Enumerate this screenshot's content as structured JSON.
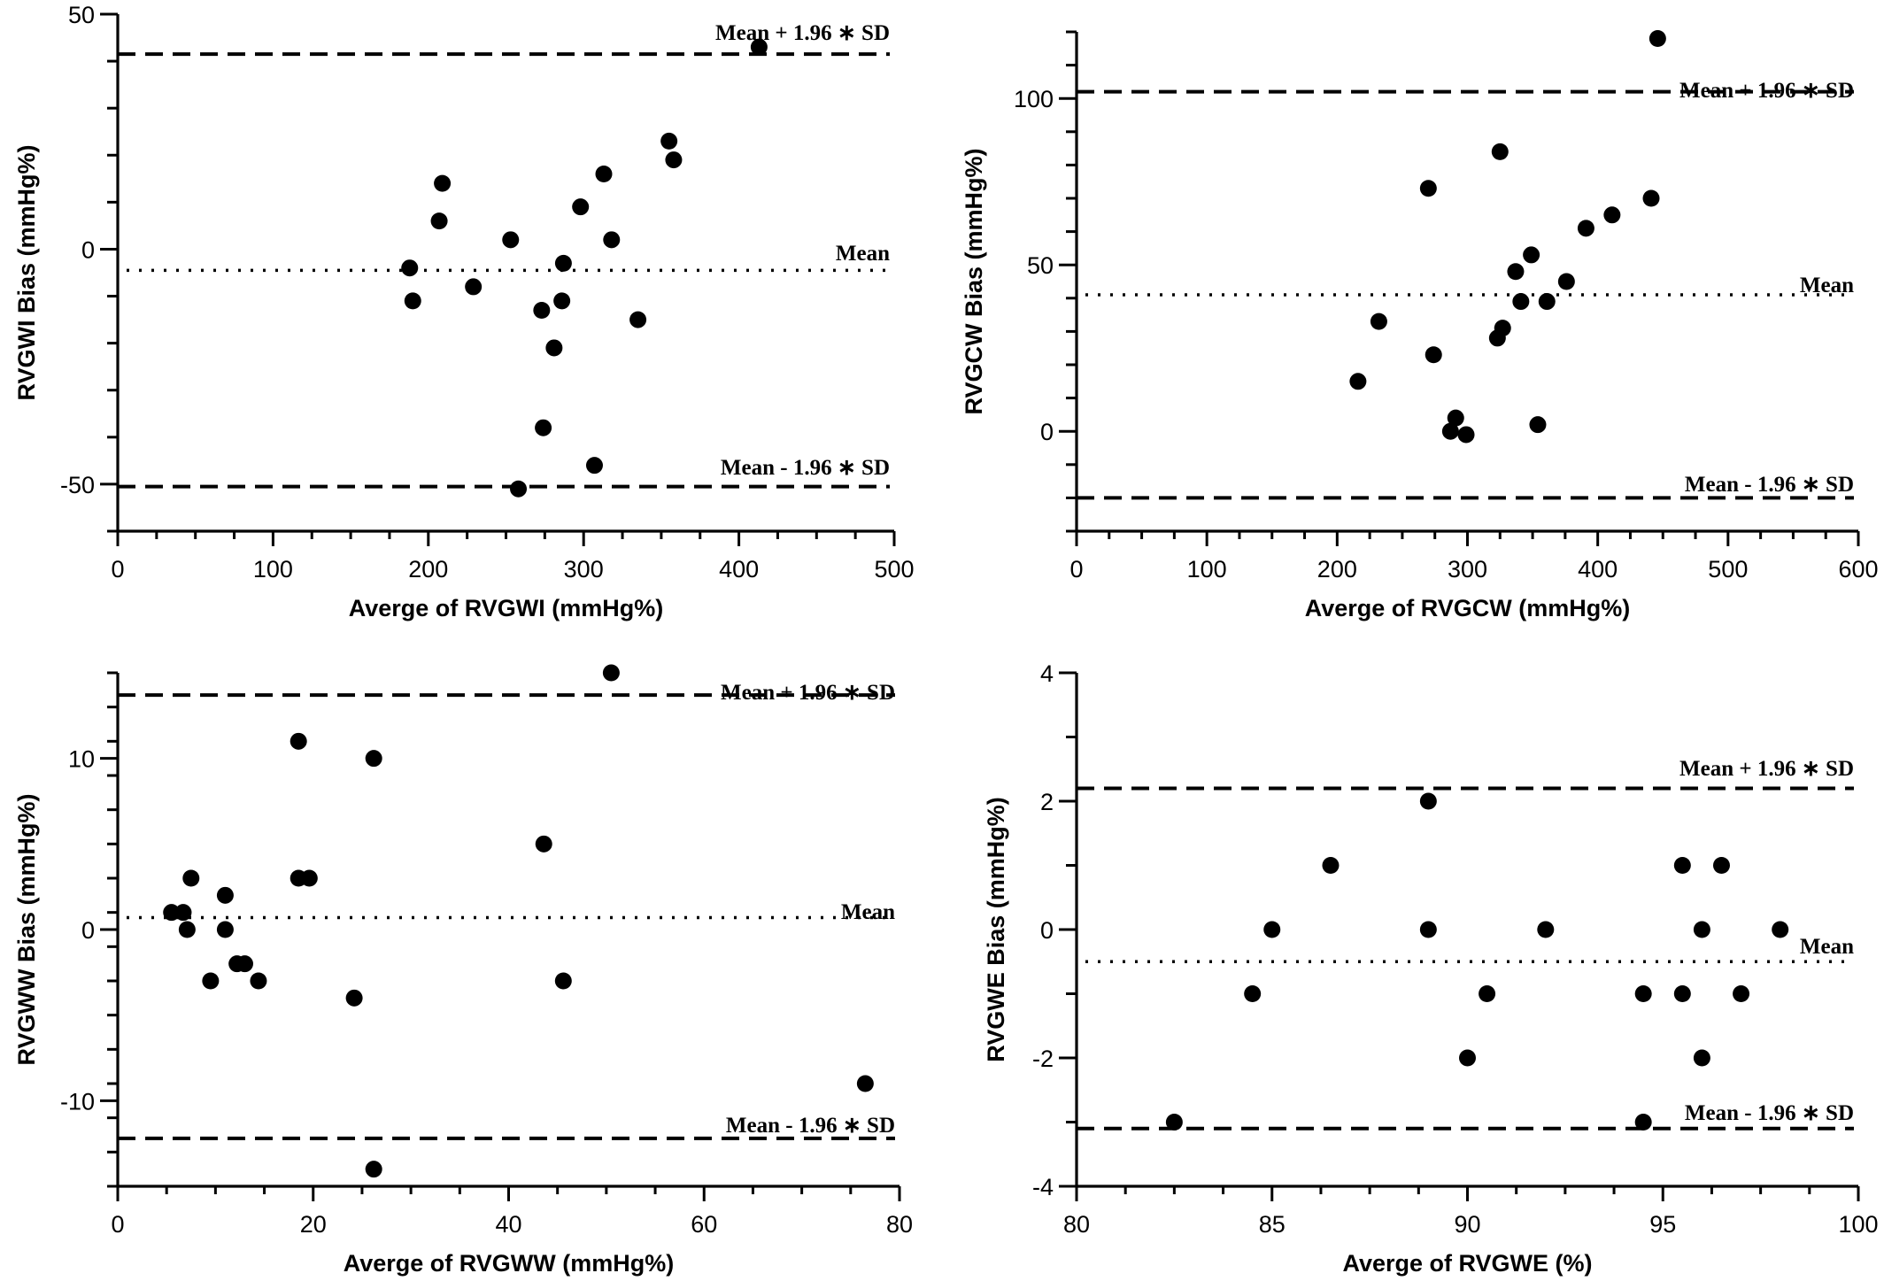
{
  "chart_data": [
    {
      "type": "scatter",
      "xlabel": "Averge of RVGWI (mmHg%)",
      "ylabel": "RVGWI Bias (mmHg%)",
      "xlim": [
        0,
        500
      ],
      "ylim": [
        -60,
        50
      ],
      "xticks": [
        0,
        100,
        200,
        300,
        400,
        500
      ],
      "yticks": [
        -50,
        0,
        50
      ],
      "upper_loa": 41.5,
      "mean": -4.5,
      "lower_loa": -50.5,
      "upper_label": "Mean + 1.96 ∗ SD",
      "mean_label": "Mean",
      "lower_label": "Mean - 1.96 ∗ SD",
      "x": [
        413,
        355,
        358,
        313,
        209,
        207,
        298,
        253,
        318,
        188,
        287,
        229,
        190,
        286,
        273,
        335,
        281,
        274,
        307,
        258
      ],
      "y": [
        43,
        23,
        19,
        16,
        14,
        6,
        9,
        2,
        2,
        -4,
        -3,
        -8,
        -11,
        -11,
        -13,
        -15,
        -21,
        -38,
        -46,
        -51
      ]
    },
    {
      "type": "scatter",
      "xlabel": "Averge of RVGCW (mmHg%)",
      "ylabel": "RVGCW Bias (mmHg%)",
      "xlim": [
        0,
        600
      ],
      "ylim": [
        -30,
        120
      ],
      "xticks": [
        0,
        100,
        200,
        300,
        400,
        500,
        600
      ],
      "yticks": [
        0,
        50,
        100
      ],
      "upper_loa": 102,
      "mean": 41,
      "lower_loa": -20,
      "upper_label": "Mean + 1.96 ∗ SD",
      "mean_label": "Mean",
      "lower_label": "Mean - 1.96 ∗ SD",
      "x": [
        446,
        325,
        270,
        441,
        411,
        391,
        349,
        337,
        376,
        341,
        361,
        232,
        327,
        323,
        274,
        216,
        291,
        287,
        354,
        299
      ],
      "y": [
        118,
        84,
        73,
        70,
        65,
        61,
        53,
        48,
        45,
        39,
        39,
        33,
        31,
        28,
        23,
        15,
        4,
        0,
        2,
        -1
      ]
    },
    {
      "type": "scatter",
      "xlabel": "Averge of RVGWW (mmHg%)",
      "ylabel": "RVGWW Bias (mmHg%)",
      "xlim": [
        0,
        80
      ],
      "ylim": [
        -15,
        15
      ],
      "xticks": [
        0,
        20,
        40,
        60,
        80
      ],
      "yticks": [
        -10,
        0,
        10
      ],
      "upper_loa": 13.7,
      "mean": 0.7,
      "lower_loa": -12.2,
      "upper_label": "Mean + 1.96 ∗ SD",
      "mean_label": "Mean",
      "lower_label": "Mean - 1.96 ∗ SD",
      "x": [
        50.5,
        18.5,
        26.2,
        43.6,
        7.5,
        18.5,
        19.6,
        11,
        5.5,
        6.7,
        7.1,
        11,
        12.2,
        13,
        9.5,
        14.4,
        45.6,
        24.2,
        76.5,
        26.2
      ],
      "y": [
        15,
        11,
        10,
        5,
        3,
        3,
        3,
        2,
        1,
        1,
        0,
        0,
        -2,
        -2,
        -3,
        -3,
        -3,
        -4,
        -9,
        -14
      ]
    },
    {
      "type": "scatter",
      "xlabel": "Averge of RVGWE (%)",
      "ylabel": "RVGWE Bias (mmHg%)",
      "xlim": [
        80,
        100
      ],
      "ylim": [
        -4,
        4
      ],
      "xticks": [
        80,
        85,
        90,
        95,
        100
      ],
      "yticks": [
        -4,
        -2,
        0,
        2,
        4
      ],
      "upper_loa": 2.2,
      "mean": -0.5,
      "lower_loa": -3.1,
      "upper_label": "Mean + 1.96 ∗ SD",
      "mean_label": "Mean",
      "lower_label": "Mean - 1.96 ∗ SD",
      "x": [
        89,
        86.5,
        95.5,
        96.5,
        85,
        89,
        92,
        96,
        98,
        84.5,
        90.5,
        94.5,
        95.5,
        97,
        90,
        96,
        82.5,
        94.5
      ],
      "y": [
        2,
        1,
        1,
        1,
        0,
        0,
        0,
        0,
        0,
        -1,
        -1,
        -1,
        -1,
        -1,
        -2,
        -2,
        -3,
        -3
      ]
    }
  ]
}
